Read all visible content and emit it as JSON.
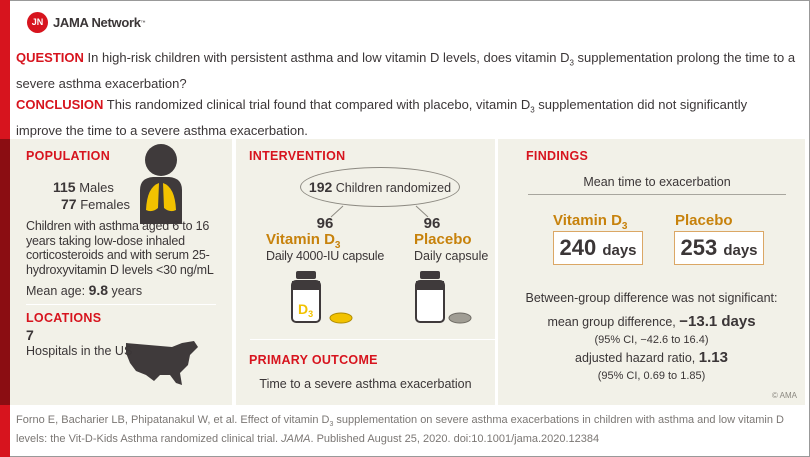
{
  "header": {
    "logo_initials": "JN",
    "brand": "JAMA Network",
    "trademark": "™"
  },
  "question": {
    "label": "QUESTION",
    "text_before_sub": "In high-risk children with persistent asthma and low vitamin D levels, does vitamin D",
    "sub": "3",
    "text_after_sub": " supplementation prolong the time to a severe asthma exacerbation?"
  },
  "conclusion": {
    "label": "CONCLUSION",
    "text_before_sub": "This randomized clinical trial found that compared with placebo, vitamin D",
    "sub": "3",
    "text_after_sub": " supplementation did not significantly improve the time to a severe asthma exacerbation."
  },
  "population": {
    "heading": "POPULATION",
    "males_n": "115",
    "males_label": "Males",
    "females_n": "77",
    "females_label": "Females",
    "description": "Children with asthma aged 6 to 16 years taking low-dose inhaled corticosteroids and with serum 25-hydroxyvitamin D levels <30 ng/mL",
    "mean_age_label": "Mean age:",
    "mean_age_value": "9.8",
    "mean_age_unit": "years"
  },
  "locations": {
    "heading": "LOCATIONS",
    "count": "7",
    "label": "Hospitals in the US"
  },
  "intervention": {
    "heading": "INTERVENTION",
    "randomized_n": "192",
    "randomized_label": "Children randomized",
    "arms": [
      {
        "n": "96",
        "name": "Vitamin D",
        "sub": "3",
        "detail": "Daily 4000-IU capsule",
        "bottle_label": "D",
        "bottle_sub": "3",
        "capsule_color": "#f2c200"
      },
      {
        "n": "96",
        "name": "Placebo",
        "sub": "",
        "detail": "Daily capsule",
        "capsule_color": "#a09d94"
      }
    ]
  },
  "primary_outcome": {
    "heading": "PRIMARY OUTCOME",
    "text": "Time to a severe asthma exacerbation"
  },
  "findings": {
    "heading": "FINDINGS",
    "subheading": "Mean time to exacerbation",
    "groups": [
      {
        "name": "Vitamin D",
        "sub": "3",
        "value": "240",
        "unit": "days"
      },
      {
        "name": "Placebo",
        "sub": "",
        "value": "253",
        "unit": "days"
      }
    ],
    "significance": "Between-group difference was not significant:",
    "diff_label": "mean group difference,",
    "diff_value": "−13.1 days",
    "diff_ci": "(95% CI, −42.6 to 16.4)",
    "hr_label": "adjusted hazard ratio,",
    "hr_value": "1.13",
    "hr_ci": "(95% CI, 0.69 to 1.85)",
    "copyright": "© AMA"
  },
  "citation": {
    "before_sub": "Forno E, Bacharier LB, Phipatanakul W, et al. Effect of vitamin D",
    "sub": "3",
    "after_sub": " supplementation on severe asthma exacerbations in children with asthma and low vitamin D levels: the Vit-D-Kids Asthma randomized clinical trial. ",
    "journal": "JAMA",
    "after_journal": ". Published August 25, 2020. doi:10.1001/jama.2020.12384"
  },
  "colors": {
    "accent_red": "#d7141e",
    "dark_red": "#8b0d12",
    "orange": "#c7820c",
    "panel_bg": "#f2f1e8"
  }
}
